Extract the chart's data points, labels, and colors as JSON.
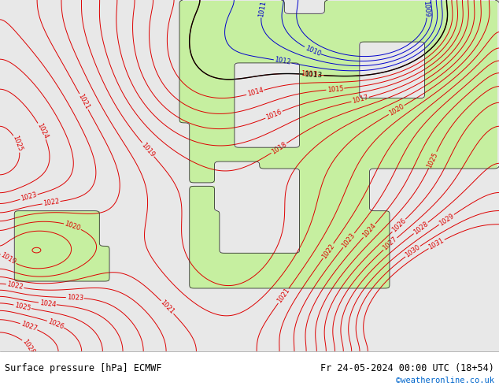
{
  "title_left": "Surface pressure [hPa] ECMWF",
  "title_right": "Fr 24-05-2024 00:00 UTC (18+54)",
  "copyright": "©weatheronline.co.uk",
  "sea_color": "#e8e8e8",
  "land_color": "#c8f0a0",
  "land_color2": "#b8e890",
  "text_color_black": "#000000",
  "text_color_red": "#dd0000",
  "text_color_blue": "#0000cc",
  "text_color_cyan_web": "#0066cc",
  "footer_bg": "#ffffff",
  "figsize": [
    6.34,
    4.9
  ],
  "dpi": 100
}
